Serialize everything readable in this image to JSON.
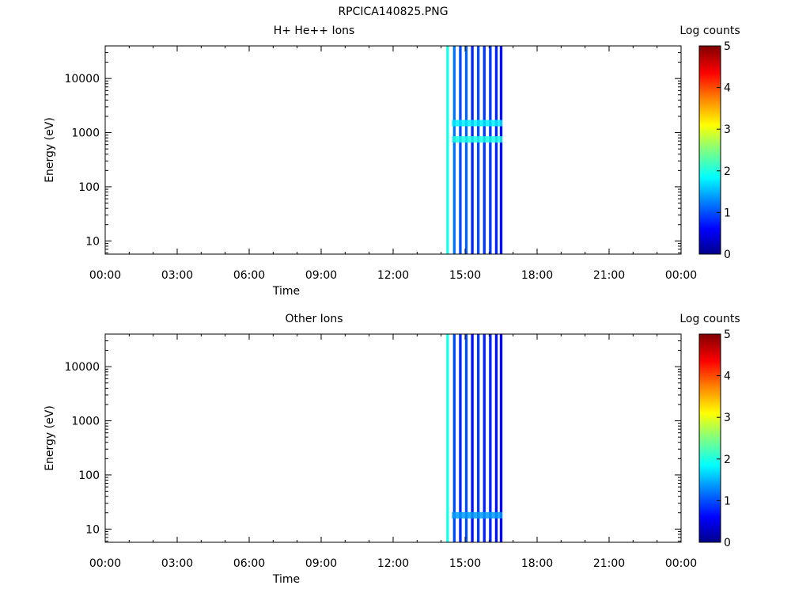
{
  "figure_title": "RPCICA140825.PNG",
  "colors": {
    "colormap": [
      "#00008b",
      "#0000ff",
      "#0080ff",
      "#00ffff",
      "#80ff80",
      "#ffff00",
      "#ff8000",
      "#ff0000",
      "#800000"
    ],
    "axis": "#000000"
  },
  "chart_data": [
    {
      "type": "heatmap",
      "title": "H+ He++ Ions",
      "xlabel": "Time",
      "ylabel": "Energy (eV)",
      "x_ticks": [
        "00:00",
        "03:00",
        "06:00",
        "09:00",
        "12:00",
        "15:00",
        "18:00",
        "21:00",
        "00:00"
      ],
      "x_range_hours": [
        0,
        24
      ],
      "y_scale": "log",
      "y_range": [
        5.7,
        40000
      ],
      "y_ticks": [
        10,
        100,
        1000,
        10000
      ],
      "y_tick_labels": [
        "10",
        "100",
        "1000",
        "10000"
      ],
      "colorbar": {
        "label": "Log counts",
        "range": [
          0,
          5
        ],
        "ticks": [
          "0",
          "1",
          "2",
          "3",
          "4",
          "5"
        ]
      },
      "data_interval_hours": [
        14.25,
        16.55
      ],
      "stripes_hours": [
        {
          "t": 14.27,
          "v": 2.0
        },
        {
          "t": 14.55,
          "v": 1.2
        },
        {
          "t": 14.8,
          "v": 1.0
        },
        {
          "t": 15.05,
          "v": 1.1
        },
        {
          "t": 15.3,
          "v": 0.8
        },
        {
          "t": 15.55,
          "v": 1.0
        },
        {
          "t": 15.8,
          "v": 0.9
        },
        {
          "t": 16.05,
          "v": 0.9
        },
        {
          "t": 16.3,
          "v": 0.8
        },
        {
          "t": 16.5,
          "v": 0.7
        }
      ],
      "enhanced_bands": [
        {
          "energy_eV": 750,
          "v": 2.0
        },
        {
          "energy_eV": 1500,
          "v": 1.8
        }
      ]
    },
    {
      "type": "heatmap",
      "title": "Other Ions",
      "xlabel": "Time",
      "ylabel": "Energy (eV)",
      "x_ticks": [
        "00:00",
        "03:00",
        "06:00",
        "09:00",
        "12:00",
        "15:00",
        "18:00",
        "21:00",
        "00:00"
      ],
      "x_range_hours": [
        0,
        24
      ],
      "y_scale": "log",
      "y_range": [
        5.7,
        40000
      ],
      "y_ticks": [
        10,
        100,
        1000,
        10000
      ],
      "y_tick_labels": [
        "10",
        "100",
        "1000",
        "10000"
      ],
      "colorbar": {
        "label": "Log counts",
        "range": [
          0,
          5
        ],
        "ticks": [
          "0",
          "1",
          "2",
          "3",
          "4",
          "5"
        ]
      },
      "data_interval_hours": [
        14.25,
        16.55
      ],
      "stripes_hours": [
        {
          "t": 14.27,
          "v": 2.0
        },
        {
          "t": 14.55,
          "v": 1.0
        },
        {
          "t": 14.8,
          "v": 0.8
        },
        {
          "t": 15.05,
          "v": 1.0
        },
        {
          "t": 15.3,
          "v": 0.7
        },
        {
          "t": 15.55,
          "v": 0.9
        },
        {
          "t": 15.8,
          "v": 0.8
        },
        {
          "t": 16.05,
          "v": 0.8
        },
        {
          "t": 16.3,
          "v": 0.7
        },
        {
          "t": 16.5,
          "v": 0.6
        }
      ],
      "enhanced_bands": [
        {
          "energy_eV": 18,
          "v": 1.4
        }
      ]
    }
  ]
}
